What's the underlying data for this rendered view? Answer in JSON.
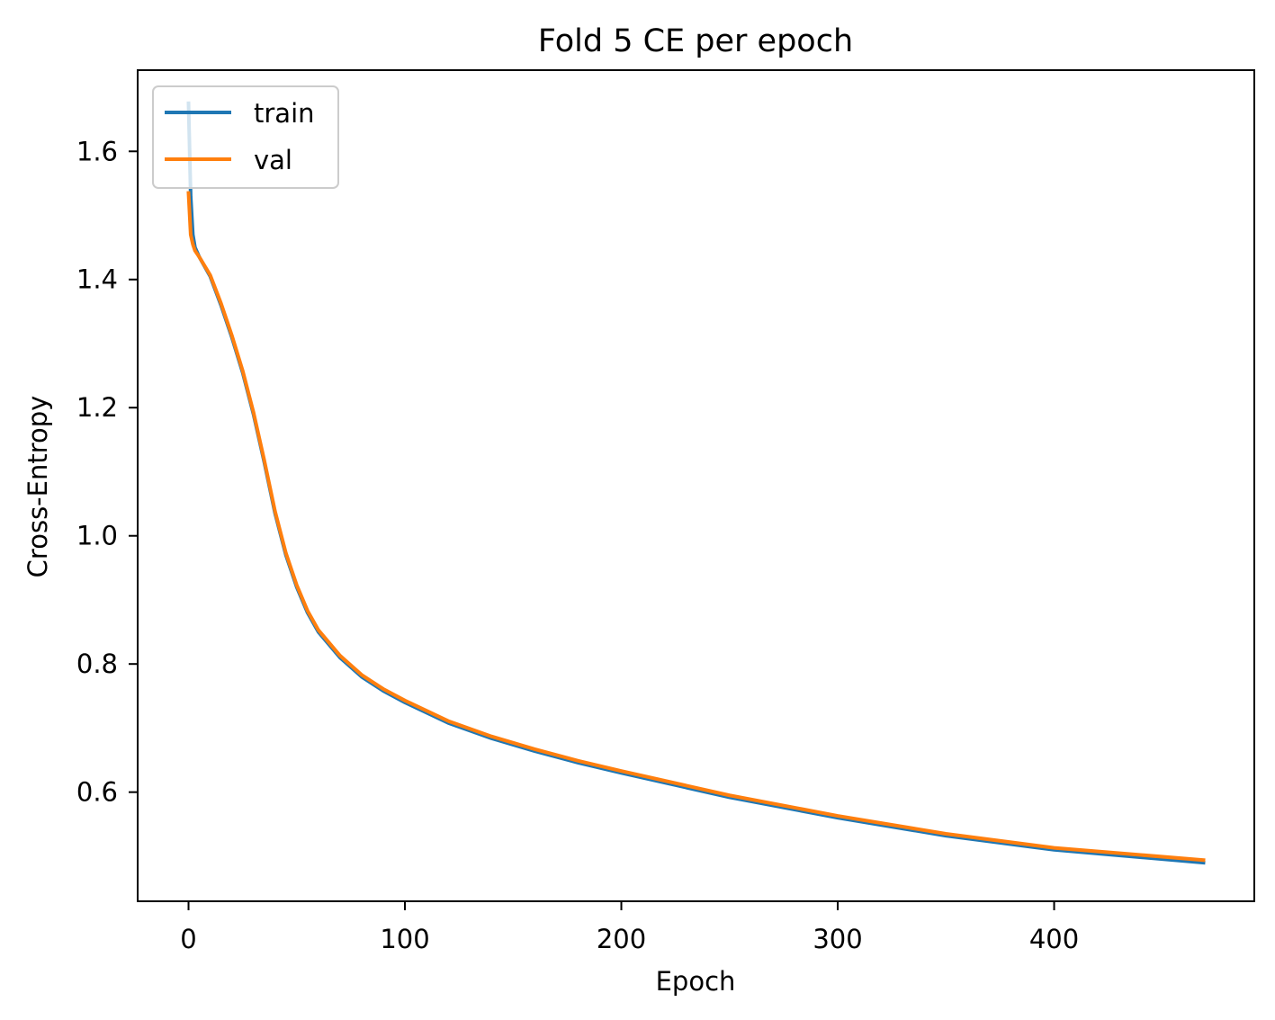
{
  "chart_data": {
    "type": "line",
    "title": "Fold 5 CE per epoch",
    "xlabel": "Epoch",
    "ylabel": "Cross-Entropy",
    "xlim": [
      -23.5,
      492.5
    ],
    "ylim": [
      0.4297,
      1.7267
    ],
    "xticks": [
      0,
      100,
      200,
      300,
      400
    ],
    "xtick_labels": [
      "0",
      "100",
      "200",
      "300",
      "400"
    ],
    "yticks": [
      0.6,
      0.8,
      1.0,
      1.2,
      1.4,
      1.6
    ],
    "ytick_labels": [
      "0.6",
      "0.8",
      "1.0",
      "1.2",
      "1.4",
      "1.6"
    ],
    "grid": false,
    "legend_position": "upper-left",
    "series": [
      {
        "name": "train",
        "color": "#1f77b4",
        "x": [
          0,
          1,
          2,
          3,
          5,
          10,
          15,
          20,
          25,
          30,
          35,
          40,
          45,
          50,
          55,
          60,
          70,
          80,
          90,
          100,
          120,
          140,
          160,
          180,
          200,
          250,
          300,
          350,
          400,
          469
        ],
        "y": [
          1.675,
          1.53,
          1.47,
          1.45,
          1.435,
          1.405,
          1.36,
          1.31,
          1.255,
          1.19,
          1.115,
          1.035,
          0.97,
          0.92,
          0.88,
          0.85,
          0.81,
          0.78,
          0.758,
          0.74,
          0.708,
          0.684,
          0.664,
          0.646,
          0.63,
          0.592,
          0.56,
          0.532,
          0.51,
          0.49
        ]
      },
      {
        "name": "val",
        "color": "#ff7f0e",
        "x": [
          0,
          1,
          2,
          3,
          5,
          10,
          15,
          20,
          25,
          30,
          35,
          40,
          45,
          50,
          55,
          60,
          70,
          80,
          90,
          100,
          120,
          140,
          160,
          180,
          200,
          250,
          300,
          350,
          400,
          469
        ],
        "y": [
          1.535,
          1.47,
          1.455,
          1.445,
          1.435,
          1.407,
          1.363,
          1.313,
          1.258,
          1.193,
          1.118,
          1.038,
          0.973,
          0.923,
          0.883,
          0.853,
          0.813,
          0.783,
          0.761,
          0.743,
          0.711,
          0.687,
          0.667,
          0.649,
          0.633,
          0.595,
          0.563,
          0.535,
          0.513,
          0.494
        ]
      }
    ]
  }
}
